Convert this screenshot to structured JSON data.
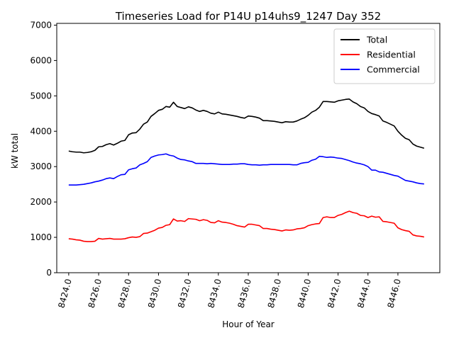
{
  "chart_data": {
    "type": "line",
    "title": "Timeseries Load for P14U p14uhs9_1247  Day 352",
    "xlabel": "Hour of Year",
    "ylabel": "kW total",
    "xlim": [
      8423.2,
      8448.8
    ],
    "ylim": [
      0,
      7050
    ],
    "xticks": [
      8424,
      8426,
      8428,
      8430,
      8432,
      8434,
      8436,
      8438,
      8440,
      8442,
      8444,
      8446
    ],
    "xtick_labels": [
      "8424.0",
      "8426.0",
      "8428.0",
      "8430.0",
      "8432.0",
      "8434.0",
      "8436.0",
      "8438.0",
      "8440.0",
      "8442.0",
      "8444.0",
      "8446.0"
    ],
    "yticks": [
      0,
      1000,
      2000,
      3000,
      4000,
      5000,
      6000,
      7000
    ],
    "ytick_labels": [
      "0",
      "1000",
      "2000",
      "3000",
      "4000",
      "5000",
      "6000",
      "7000"
    ],
    "grid": false,
    "legend_position": "top-right",
    "x": [
      8424,
      8424.25,
      8424.5,
      8424.75,
      8425,
      8425.25,
      8425.5,
      8425.75,
      8426,
      8426.25,
      8426.5,
      8426.75,
      8427,
      8427.25,
      8427.5,
      8427.75,
      8428,
      8428.25,
      8428.5,
      8428.75,
      8429,
      8429.25,
      8429.5,
      8429.75,
      8430,
      8430.25,
      8430.5,
      8430.75,
      8431,
      8431.25,
      8431.5,
      8431.75,
      8432,
      8432.25,
      8432.5,
      8432.75,
      8433,
      8433.25,
      8433.5,
      8433.75,
      8434,
      8434.25,
      8434.5,
      8434.75,
      8435,
      8435.25,
      8435.5,
      8435.75,
      8436,
      8436.25,
      8436.5,
      8436.75,
      8437,
      8437.25,
      8437.5,
      8437.75,
      8438,
      8438.25,
      8438.5,
      8438.75,
      8439,
      8439.25,
      8439.5,
      8439.75,
      8440,
      8440.25,
      8440.5,
      8440.75,
      8441,
      8441.25,
      8441.5,
      8441.75,
      8442,
      8442.25,
      8442.5,
      8442.75,
      8443,
      8443.25,
      8443.5,
      8443.75,
      8444,
      8444.25,
      8444.5,
      8444.75,
      8445,
      8445.25,
      8445.5,
      8445.75,
      8446,
      8446.25,
      8446.5,
      8446.75,
      8447,
      8447.25,
      8447.5,
      8447.75
    ],
    "series": [
      {
        "name": "Total",
        "color": "#000000",
        "values": [
          3440,
          3420,
          3410,
          3410,
          3390,
          3400,
          3420,
          3460,
          3560,
          3570,
          3620,
          3650,
          3610,
          3660,
          3720,
          3740,
          3900,
          3950,
          3960,
          4060,
          4200,
          4260,
          4420,
          4500,
          4590,
          4620,
          4700,
          4680,
          4820,
          4700,
          4670,
          4640,
          4690,
          4660,
          4600,
          4560,
          4590,
          4560,
          4510,
          4490,
          4540,
          4490,
          4480,
          4460,
          4440,
          4420,
          4390,
          4370,
          4430,
          4420,
          4400,
          4370,
          4300,
          4300,
          4290,
          4280,
          4260,
          4240,
          4270,
          4260,
          4260,
          4290,
          4340,
          4380,
          4450,
          4540,
          4590,
          4680,
          4840,
          4840,
          4830,
          4820,
          4860,
          4880,
          4900,
          4910,
          4830,
          4780,
          4700,
          4660,
          4560,
          4500,
          4470,
          4430,
          4290,
          4250,
          4200,
          4150,
          4000,
          3890,
          3800,
          3760,
          3640,
          3580,
          3550,
          3520
        ]
      },
      {
        "name": "Residential",
        "color": "#ff0000",
        "values": [
          960,
          950,
          930,
          920,
          890,
          880,
          880,
          890,
          970,
          950,
          960,
          970,
          950,
          950,
          950,
          960,
          990,
          1010,
          1000,
          1020,
          1110,
          1120,
          1160,
          1200,
          1260,
          1280,
          1340,
          1360,
          1520,
          1460,
          1470,
          1450,
          1530,
          1520,
          1510,
          1470,
          1500,
          1480,
          1420,
          1410,
          1470,
          1430,
          1420,
          1400,
          1370,
          1330,
          1310,
          1290,
          1370,
          1370,
          1350,
          1330,
          1250,
          1250,
          1230,
          1220,
          1200,
          1180,
          1210,
          1200,
          1210,
          1240,
          1250,
          1270,
          1330,
          1360,
          1380,
          1390,
          1560,
          1580,
          1560,
          1560,
          1620,
          1650,
          1700,
          1740,
          1700,
          1680,
          1620,
          1610,
          1560,
          1600,
          1570,
          1580,
          1450,
          1440,
          1420,
          1400,
          1270,
          1220,
          1190,
          1170,
          1070,
          1040,
          1030,
          1010
        ]
      },
      {
        "name": "Commercial",
        "color": "#0000ff",
        "values": [
          2480,
          2480,
          2480,
          2490,
          2500,
          2520,
          2540,
          2570,
          2590,
          2620,
          2660,
          2680,
          2660,
          2720,
          2770,
          2780,
          2910,
          2940,
          2960,
          3050,
          3090,
          3140,
          3260,
          3300,
          3330,
          3340,
          3360,
          3320,
          3300,
          3240,
          3200,
          3190,
          3160,
          3140,
          3090,
          3090,
          3090,
          3080,
          3090,
          3080,
          3070,
          3060,
          3060,
          3060,
          3070,
          3070,
          3080,
          3080,
          3060,
          3050,
          3050,
          3040,
          3050,
          3050,
          3060,
          3060,
          3060,
          3060,
          3060,
          3060,
          3050,
          3050,
          3090,
          3110,
          3120,
          3180,
          3210,
          3290,
          3280,
          3260,
          3270,
          3260,
          3240,
          3230,
          3200,
          3170,
          3130,
          3100,
          3080,
          3050,
          3000,
          2900,
          2900,
          2850,
          2840,
          2810,
          2780,
          2750,
          2730,
          2670,
          2610,
          2590,
          2570,
          2540,
          2520,
          2510
        ]
      }
    ]
  }
}
